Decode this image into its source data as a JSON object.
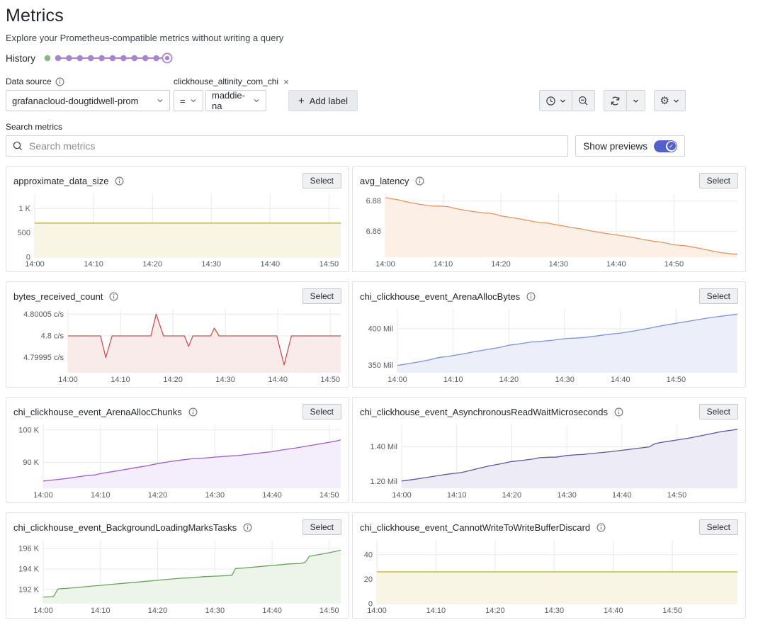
{
  "header": {
    "title": "Metrics",
    "subtitle": "Explore your Prometheus-compatible metrics without writing a query",
    "history_label": "History",
    "history": {
      "green_dots": 1,
      "plain_purple_dots": 10,
      "ring_dots": 1,
      "green_color": "#84ba7c",
      "purple_color": "#a984d6"
    }
  },
  "filters": {
    "datasource_label": "Data source",
    "datasource_value": "grafanacloud-dougtidwell-prom",
    "label_chip": {
      "name": "clickhouse_altinity_com_chi",
      "remove_icon": "×",
      "operator": "=",
      "value": "maddie-na"
    },
    "add_label": {
      "plus": "+",
      "label": "Add label"
    }
  },
  "toolbar": {
    "groups": [
      {
        "buttons": [
          {
            "icon": "clock",
            "has_caret": true
          },
          {
            "icon": "zoom-out",
            "has_caret": false
          }
        ]
      },
      {
        "buttons": [
          {
            "icon": "refresh",
            "has_caret": false
          },
          {
            "icon": "caret",
            "has_caret": false
          }
        ]
      },
      {
        "buttons": [
          {
            "icon": "gear",
            "has_caret": true
          }
        ]
      }
    ]
  },
  "search": {
    "label": "Search metrics",
    "placeholder": "Search metrics"
  },
  "previews": {
    "label": "Show previews",
    "enabled": true,
    "toggle_color": "#5560c9",
    "check_icon": "✓"
  },
  "panel_ui": {
    "select_label": "Select"
  },
  "chart_data": [
    {
      "type": "area",
      "title": "approximate_data_size",
      "color": "#bca622",
      "fill": "#f8f5e4",
      "ylim": [
        0,
        1310
      ],
      "x_end": 52,
      "y_ticks": [
        {
          "label": "0",
          "v": 0
        },
        {
          "label": "500",
          "v": 500
        },
        {
          "label": "1 K",
          "v": 1000
        }
      ],
      "x_ticks": [
        {
          "label": "14:00",
          "m": 0
        },
        {
          "label": "14:10",
          "m": 10
        },
        {
          "label": "14:20",
          "m": 20
        },
        {
          "label": "14:30",
          "m": 30
        },
        {
          "label": "14:40",
          "m": 40
        },
        {
          "label": "14:50",
          "m": 50
        }
      ],
      "points": [
        [
          0,
          700
        ],
        [
          52,
          700
        ]
      ]
    },
    {
      "type": "area",
      "title": "avg_latency",
      "color": "#e8935a",
      "fill": "#fcefe6",
      "ylim": [
        6.843,
        6.885
      ],
      "x_end": 61,
      "y_ticks": [
        {
          "label": "6.86",
          "v": 6.86
        },
        {
          "label": "6.88",
          "v": 6.88
        }
      ],
      "x_ticks": [
        {
          "label": "14:00",
          "m": 0
        },
        {
          "label": "14:10",
          "m": 10
        },
        {
          "label": "14:20",
          "m": 20
        },
        {
          "label": "14:30",
          "m": 30
        },
        {
          "label": "14:40",
          "m": 40
        },
        {
          "label": "14:50",
          "m": 50
        }
      ],
      "points": [
        [
          0,
          6.8822
        ],
        [
          2,
          6.881
        ],
        [
          4,
          6.8792
        ],
        [
          6,
          6.8778
        ],
        [
          8,
          6.8768
        ],
        [
          9,
          6.8767
        ],
        [
          10,
          6.8766
        ],
        [
          11,
          6.8762
        ],
        [
          12,
          6.8752
        ],
        [
          14,
          6.8738
        ],
        [
          16,
          6.8727
        ],
        [
          17,
          6.8722
        ],
        [
          18,
          6.872
        ],
        [
          19,
          6.8714
        ],
        [
          20,
          6.8702
        ],
        [
          22,
          6.8691
        ],
        [
          24,
          6.8678
        ],
        [
          26,
          6.8663
        ],
        [
          27,
          6.8658
        ],
        [
          28,
          6.8656
        ],
        [
          29,
          6.8648
        ],
        [
          30,
          6.8642
        ],
        [
          32,
          6.8628
        ],
        [
          34,
          6.8616
        ],
        [
          36,
          6.8601
        ],
        [
          38,
          6.8588
        ],
        [
          40,
          6.8577
        ],
        [
          42,
          6.8566
        ],
        [
          44,
          6.8552
        ],
        [
          46,
          6.8538
        ],
        [
          48,
          6.8528
        ],
        [
          50,
          6.8512
        ],
        [
          52,
          6.8505
        ],
        [
          54,
          6.8492
        ],
        [
          56,
          6.8476
        ],
        [
          58,
          6.8461
        ],
        [
          60,
          6.8452
        ],
        [
          61,
          6.845
        ]
      ]
    },
    {
      "type": "area",
      "title": "bytes_received_count",
      "color": "#cc5050",
      "fill": "#faebeb",
      "ylim": [
        4.799915,
        4.800062
      ],
      "x_end": 52,
      "y_ticks": [
        {
          "label": "4.79995 c/s",
          "v": 4.79995
        },
        {
          "label": "4.8 c/s",
          "v": 4.8
        },
        {
          "label": "4.80005 c/s",
          "v": 4.80005
        }
      ],
      "x_ticks": [
        {
          "label": "14:00",
          "m": 0
        },
        {
          "label": "14:10",
          "m": 10
        },
        {
          "label": "14:20",
          "m": 20
        },
        {
          "label": "14:30",
          "m": 30
        },
        {
          "label": "14:40",
          "m": 40
        },
        {
          "label": "14:50",
          "m": 50
        }
      ],
      "points": [
        [
          0,
          4.8
        ],
        [
          6.2,
          4.8
        ],
        [
          7.2,
          4.79995
        ],
        [
          8.4,
          4.8
        ],
        [
          15.8,
          4.8
        ],
        [
          16.8,
          4.80005
        ],
        [
          18.2,
          4.8
        ],
        [
          22.2,
          4.8
        ],
        [
          23,
          4.799976
        ],
        [
          23.8,
          4.8
        ],
        [
          27.2,
          4.8
        ],
        [
          27.9,
          4.800018
        ],
        [
          28.8,
          4.8
        ],
        [
          39.8,
          4.8
        ],
        [
          41.2,
          4.799933
        ],
        [
          42.6,
          4.8
        ],
        [
          52,
          4.8
        ]
      ]
    },
    {
      "type": "area",
      "title": "chi_clickhouse_event_ArenaAllocBytes",
      "color": "#7b93db",
      "fill": "#eceff9",
      "ylim": [
        340,
        427
      ],
      "x_end": 61,
      "y_ticks": [
        {
          "label": "350 Mil",
          "v": 350
        },
        {
          "label": "400 Mil",
          "v": 400
        }
      ],
      "x_ticks": [
        {
          "label": "14:00",
          "m": 0
        },
        {
          "label": "14:10",
          "m": 10
        },
        {
          "label": "14:20",
          "m": 20
        },
        {
          "label": "14:30",
          "m": 30
        },
        {
          "label": "14:40",
          "m": 40
        },
        {
          "label": "14:50",
          "m": 50
        }
      ],
      "points": [
        [
          0,
          350
        ],
        [
          2,
          352.5
        ],
        [
          4,
          355
        ],
        [
          6,
          358
        ],
        [
          7,
          360
        ],
        [
          8,
          361.5
        ],
        [
          9,
          361.8
        ],
        [
          10,
          363.5
        ],
        [
          12,
          366
        ],
        [
          14,
          369
        ],
        [
          16,
          371.5
        ],
        [
          18,
          374
        ],
        [
          20,
          377.5
        ],
        [
          22,
          379.5
        ],
        [
          24,
          382
        ],
        [
          25,
          382.3
        ],
        [
          26,
          383
        ],
        [
          28,
          384.5
        ],
        [
          30,
          386.5
        ],
        [
          31,
          387
        ],
        [
          32,
          387.2
        ],
        [
          34,
          388.5
        ],
        [
          36,
          390.5
        ],
        [
          38,
          392.5
        ],
        [
          40,
          394
        ],
        [
          42,
          396.5
        ],
        [
          44,
          399
        ],
        [
          46,
          402
        ],
        [
          48,
          405
        ],
        [
          50,
          407.5
        ],
        [
          52,
          410
        ],
        [
          54,
          412.5
        ],
        [
          56,
          415
        ],
        [
          58,
          417
        ],
        [
          60,
          419
        ],
        [
          61,
          420
        ]
      ]
    },
    {
      "type": "area",
      "title": "chi_clickhouse_event_ArenaAllocChunks",
      "color": "#a05ad0",
      "fill": "#f4edfb",
      "ylim": [
        82,
        101.7
      ],
      "x_end": 52,
      "y_ticks": [
        {
          "label": "90 K",
          "v": 90
        },
        {
          "label": "100 K",
          "v": 100
        }
      ],
      "x_ticks": [
        {
          "label": "14:00",
          "m": 0
        },
        {
          "label": "14:10",
          "m": 10
        },
        {
          "label": "14:20",
          "m": 20
        },
        {
          "label": "14:30",
          "m": 30
        },
        {
          "label": "14:40",
          "m": 40
        },
        {
          "label": "14:50",
          "m": 50
        }
      ],
      "points": [
        [
          0,
          84.2
        ],
        [
          2,
          84.6
        ],
        [
          4,
          85
        ],
        [
          6,
          85.5
        ],
        [
          8,
          86
        ],
        [
          9,
          86.1
        ],
        [
          10,
          86.5
        ],
        [
          12,
          87.1
        ],
        [
          14,
          87.7
        ],
        [
          16,
          88.3
        ],
        [
          18,
          88.9
        ],
        [
          20,
          89.6
        ],
        [
          22,
          90.2
        ],
        [
          24,
          90.7
        ],
        [
          26,
          91.1
        ],
        [
          27,
          91.2
        ],
        [
          28,
          91.3
        ],
        [
          30,
          91.6
        ],
        [
          32,
          91.9
        ],
        [
          33,
          92
        ],
        [
          34,
          92.1
        ],
        [
          36,
          92.5
        ],
        [
          38,
          92.9
        ],
        [
          40,
          93.3
        ],
        [
          42,
          93.9
        ],
        [
          44,
          94.4
        ],
        [
          46,
          95
        ],
        [
          48,
          95.6
        ],
        [
          50,
          96.2
        ],
        [
          51,
          96.5
        ],
        [
          52,
          96.9
        ]
      ]
    },
    {
      "type": "area",
      "title": "chi_clickhouse_event_AsynchronousReadWaitMicroseconds",
      "color": "#5e55a5",
      "fill": "#ecebf6",
      "ylim": [
        1.16,
        1.53
      ],
      "x_end": 61,
      "y_ticks": [
        {
          "label": "1.20 Mil",
          "v": 1.2
        },
        {
          "label": "1.40 Mil",
          "v": 1.4
        }
      ],
      "x_ticks": [
        {
          "label": "14:00",
          "m": 0
        },
        {
          "label": "14:10",
          "m": 10
        },
        {
          "label": "14:20",
          "m": 20
        },
        {
          "label": "14:30",
          "m": 30
        },
        {
          "label": "14:40",
          "m": 40
        },
        {
          "label": "14:50",
          "m": 50
        }
      ],
      "points": [
        [
          0,
          1.202
        ],
        [
          2,
          1.21
        ],
        [
          4,
          1.22
        ],
        [
          6,
          1.23
        ],
        [
          8,
          1.24
        ],
        [
          10,
          1.248
        ],
        [
          11,
          1.252
        ],
        [
          12,
          1.26
        ],
        [
          14,
          1.275
        ],
        [
          16,
          1.29
        ],
        [
          18,
          1.302
        ],
        [
          20,
          1.315
        ],
        [
          22,
          1.322
        ],
        [
          24,
          1.33
        ],
        [
          25,
          1.337
        ],
        [
          27,
          1.34
        ],
        [
          28,
          1.34
        ],
        [
          30,
          1.35
        ],
        [
          32,
          1.355
        ],
        [
          33,
          1.356
        ],
        [
          34,
          1.36
        ],
        [
          36,
          1.366
        ],
        [
          38,
          1.372
        ],
        [
          40,
          1.38
        ],
        [
          42,
          1.388
        ],
        [
          44,
          1.396
        ],
        [
          45,
          1.4
        ],
        [
          46,
          1.418
        ],
        [
          47,
          1.425
        ],
        [
          48,
          1.43
        ],
        [
          50,
          1.44
        ],
        [
          52,
          1.45
        ],
        [
          54,
          1.462
        ],
        [
          56,
          1.475
        ],
        [
          58,
          1.488
        ],
        [
          60,
          1.497
        ],
        [
          61,
          1.502
        ]
      ]
    },
    {
      "type": "area",
      "title": "chi_clickhouse_event_BackgroundLoadingMarksTasks",
      "color": "#66a35a",
      "fill": "#edf4ea",
      "ylim": [
        190.6,
        196.85
      ],
      "x_end": 52,
      "y_ticks": [
        {
          "label": "192 K",
          "v": 192
        },
        {
          "label": "194 K",
          "v": 194
        },
        {
          "label": "196 K",
          "v": 196
        }
      ],
      "x_ticks": [
        {
          "label": "14:00",
          "m": 0
        },
        {
          "label": "14:10",
          "m": 10
        },
        {
          "label": "14:20",
          "m": 20
        },
        {
          "label": "14:30",
          "m": 30
        },
        {
          "label": "14:40",
          "m": 40
        },
        {
          "label": "14:50",
          "m": 50
        }
      ],
      "points": [
        [
          0,
          191.25
        ],
        [
          1.8,
          191.3
        ],
        [
          2.2,
          191.7
        ],
        [
          2.6,
          192.05
        ],
        [
          4,
          192.1
        ],
        [
          6,
          192.2
        ],
        [
          8,
          192.3
        ],
        [
          10,
          192.4
        ],
        [
          12,
          192.5
        ],
        [
          14,
          192.6
        ],
        [
          16,
          192.7
        ],
        [
          18,
          192.8
        ],
        [
          20,
          192.9
        ],
        [
          22,
          193
        ],
        [
          24,
          193.1
        ],
        [
          26,
          193.15
        ],
        [
          28,
          193.25
        ],
        [
          30,
          193.3
        ],
        [
          32,
          193.35
        ],
        [
          33,
          193.4
        ],
        [
          33.6,
          194.05
        ],
        [
          35,
          194.1
        ],
        [
          37,
          194.2
        ],
        [
          39,
          194.3
        ],
        [
          41,
          194.4
        ],
        [
          43,
          194.5
        ],
        [
          45,
          194.55
        ],
        [
          45.8,
          194.65
        ],
        [
          46.5,
          195.25
        ],
        [
          48,
          195.4
        ],
        [
          50,
          195.6
        ],
        [
          52,
          195.85
        ]
      ]
    },
    {
      "type": "area",
      "title": "chi_clickhouse_event_CannotWriteToWriteBufferDiscard",
      "color": "#bca622",
      "fill": "#f8f5e4",
      "ylim": [
        0,
        52
      ],
      "x_end": 61,
      "y_ticks": [
        {
          "label": "0",
          "v": 0
        },
        {
          "label": "20",
          "v": 20
        },
        {
          "label": "40",
          "v": 40
        }
      ],
      "x_ticks": [
        {
          "label": "14:00",
          "m": 0
        },
        {
          "label": "14:10",
          "m": 10
        },
        {
          "label": "14:20",
          "m": 20
        },
        {
          "label": "14:30",
          "m": 30
        },
        {
          "label": "14:40",
          "m": 40
        },
        {
          "label": "14:50",
          "m": 50
        }
      ],
      "points": [
        [
          0,
          26
        ],
        [
          61,
          26
        ]
      ]
    }
  ]
}
